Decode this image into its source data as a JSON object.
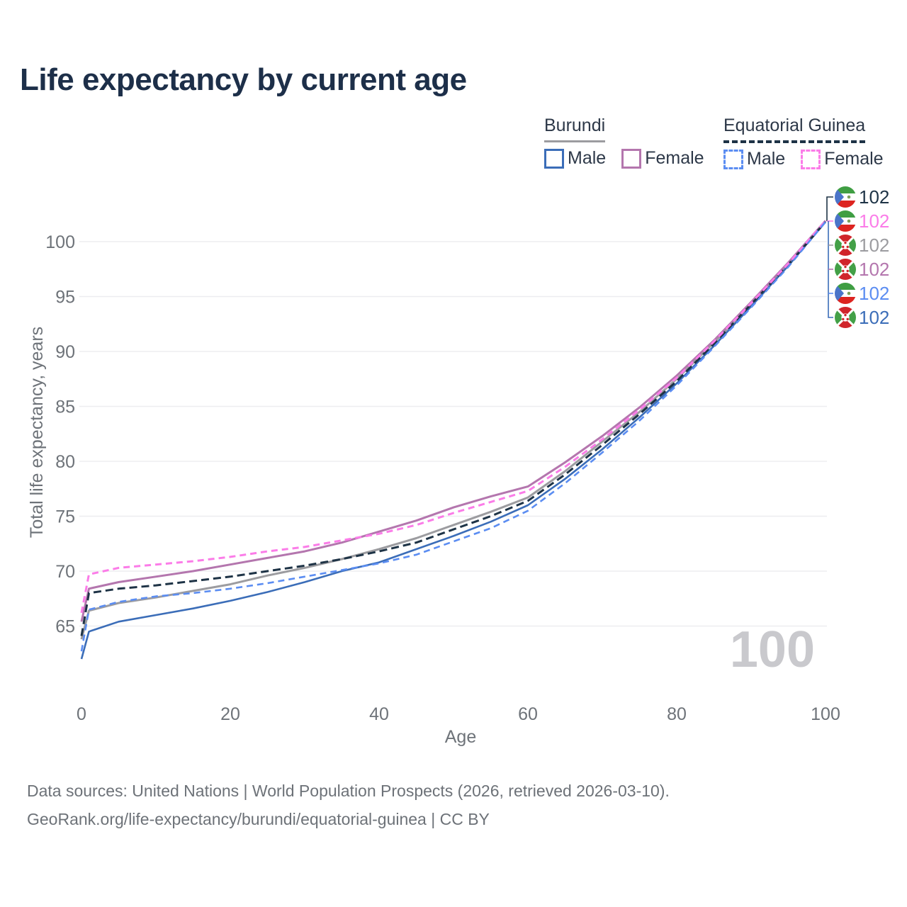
{
  "title": "Life expectancy by current age",
  "legend": {
    "groups": [
      {
        "label": "Burundi",
        "underline_style": "solid",
        "underline_color": "#9c9ca0",
        "items": [
          {
            "label": "Male",
            "color": "#3b6db8",
            "dash": false
          },
          {
            "label": "Female",
            "color": "#b476ae",
            "dash": false
          }
        ]
      },
      {
        "label": "Equatorial Guinea",
        "underline_style": "dashed",
        "underline_color": "#1e3346",
        "items": [
          {
            "label": "Male",
            "color": "#5b8df2",
            "dash": true
          },
          {
            "label": "Female",
            "color": "#fb7ce8",
            "dash": true
          }
        ]
      }
    ]
  },
  "chart_data": {
    "type": "line",
    "title": "Life expectancy by current age",
    "xlabel": "Age",
    "ylabel": "Total life expectancy, years",
    "xlim": [
      0,
      100
    ],
    "ylim": [
      61,
      103
    ],
    "x_ticks": [
      0,
      20,
      40,
      60,
      80,
      100
    ],
    "y_ticks": [
      65,
      70,
      75,
      80,
      85,
      90,
      95,
      100
    ],
    "grid": "horizontal",
    "x": [
      0,
      1,
      5,
      10,
      15,
      20,
      25,
      30,
      35,
      40,
      45,
      50,
      55,
      60,
      65,
      70,
      75,
      80,
      85,
      90,
      95,
      100
    ],
    "series": [
      {
        "name": "Equatorial Guinea — Both sexes",
        "country": "Equatorial Guinea",
        "sex": "both",
        "line": "dashed",
        "color": "#1e3346",
        "flag": "equatorial-guinea",
        "end_label": "102",
        "values": [
          64.1,
          68.0,
          68.4,
          68.7,
          69.1,
          69.5,
          70.0,
          70.5,
          71.1,
          71.8,
          72.6,
          73.8,
          75.0,
          76.4,
          78.8,
          81.5,
          84.3,
          87.3,
          90.7,
          94.3,
          97.9,
          101.8
        ]
      },
      {
        "name": "Equatorial Guinea — Female",
        "country": "Equatorial Guinea",
        "sex": "female",
        "line": "dashed",
        "color": "#fb7ce8",
        "flag": "equatorial-guinea",
        "end_label": "102",
        "values": [
          66.2,
          69.7,
          70.3,
          70.6,
          70.9,
          71.3,
          71.8,
          72.2,
          72.8,
          73.4,
          74.2,
          75.3,
          76.3,
          77.3,
          79.5,
          82.0,
          84.7,
          87.6,
          90.9,
          94.4,
          98.0,
          101.9
        ]
      },
      {
        "name": "Burundi — Both sexes",
        "country": "Burundi",
        "sex": "both",
        "line": "solid",
        "color": "#9c9ca0",
        "flag": "burundi",
        "end_label": "102",
        "values": [
          63.8,
          66.4,
          67.1,
          67.6,
          68.2,
          68.8,
          69.6,
          70.3,
          71.1,
          72.0,
          73.0,
          74.2,
          75.4,
          76.7,
          79.1,
          81.8,
          84.5,
          87.5,
          90.8,
          94.3,
          98.0,
          101.8
        ]
      },
      {
        "name": "Burundi — Female",
        "country": "Burundi",
        "sex": "female",
        "line": "solid",
        "color": "#b476ae",
        "flag": "burundi",
        "end_label": "102",
        "values": [
          65.4,
          68.4,
          69.0,
          69.5,
          70.0,
          70.6,
          71.2,
          71.8,
          72.6,
          73.6,
          74.6,
          75.8,
          76.8,
          77.7,
          79.9,
          82.3,
          84.9,
          87.8,
          91.0,
          94.5,
          98.1,
          101.9
        ]
      },
      {
        "name": "Equatorial Guinea — Male",
        "country": "Equatorial Guinea",
        "sex": "male",
        "line": "dashed",
        "color": "#5b8df2",
        "flag": "equatorial-guinea",
        "end_label": "102",
        "values": [
          62.7,
          66.5,
          67.2,
          67.7,
          68.0,
          68.4,
          68.9,
          69.5,
          70.1,
          70.7,
          71.5,
          72.7,
          73.9,
          75.5,
          78.0,
          80.8,
          83.7,
          86.9,
          90.4,
          94.0,
          97.7,
          101.8
        ]
      },
      {
        "name": "Burundi — Male",
        "country": "Burundi",
        "sex": "male",
        "line": "solid",
        "color": "#3b6db8",
        "flag": "burundi",
        "end_label": "102",
        "values": [
          62.0,
          64.5,
          65.4,
          66.0,
          66.6,
          67.3,
          68.1,
          69.0,
          70.0,
          70.8,
          72.0,
          73.2,
          74.5,
          76.0,
          78.4,
          81.1,
          84.0,
          87.1,
          90.5,
          94.1,
          97.8,
          101.8
        ]
      }
    ],
    "flag_colors": {
      "burundi_red": "#d0252b",
      "burundi_green": "#43a047",
      "gq_green": "#3f9e43",
      "gq_white": "#ffffff",
      "gq_red": "#dd2420",
      "gq_blue": "#4a74c9"
    }
  },
  "watermark": "100",
  "footer": {
    "line1": "Data sources: United Nations | World Population Prospects (2026, retrieved 2026-03-10).",
    "line2": "GeoRank.org/life-expectancy/burundi/equatorial-guinea | CC BY"
  }
}
